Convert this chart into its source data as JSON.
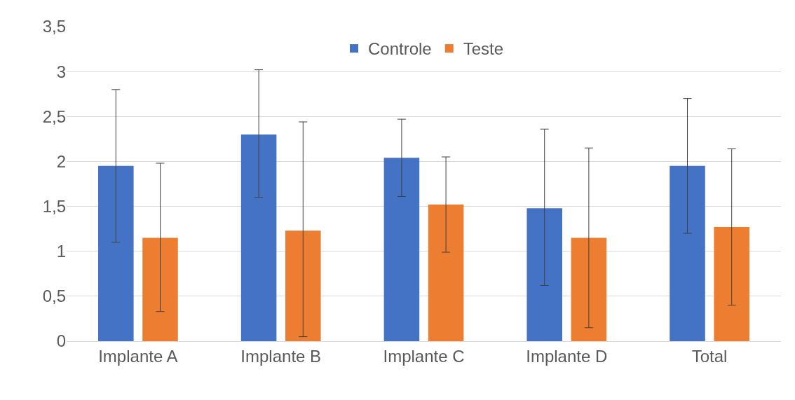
{
  "chart_data": {
    "type": "bar",
    "categories": [
      "Implante A",
      "Implante B",
      "Implante C",
      "Implante D",
      "Total"
    ],
    "series": [
      {
        "name": "Controle",
        "color": "#4472c4",
        "values": [
          1.95,
          2.3,
          2.04,
          1.48,
          1.95
        ],
        "errors": [
          [
            1.1,
            2.8
          ],
          [
            1.6,
            3.02
          ],
          [
            1.61,
            2.47
          ],
          [
            0.62,
            2.36
          ],
          [
            1.2,
            2.7
          ]
        ]
      },
      {
        "name": "Teste",
        "color": "#ed7d31",
        "values": [
          1.15,
          1.23,
          1.52,
          1.15,
          1.27
        ],
        "errors": [
          [
            0.33,
            1.98
          ],
          [
            0.05,
            2.44
          ],
          [
            0.99,
            2.05
          ],
          [
            0.15,
            2.15
          ],
          [
            0.4,
            2.14
          ]
        ]
      }
    ],
    "ylim": [
      0,
      3.5
    ],
    "yticks": [
      0,
      {
        "value": 0.5,
        "label": "0,5"
      },
      1,
      {
        "value": 1.5,
        "label": "1,5"
      },
      2,
      {
        "value": 2.5,
        "label": "2,5"
      },
      3,
      {
        "value": 3.5,
        "label": "3,5"
      }
    ],
    "grid": "y",
    "legend": "top"
  }
}
